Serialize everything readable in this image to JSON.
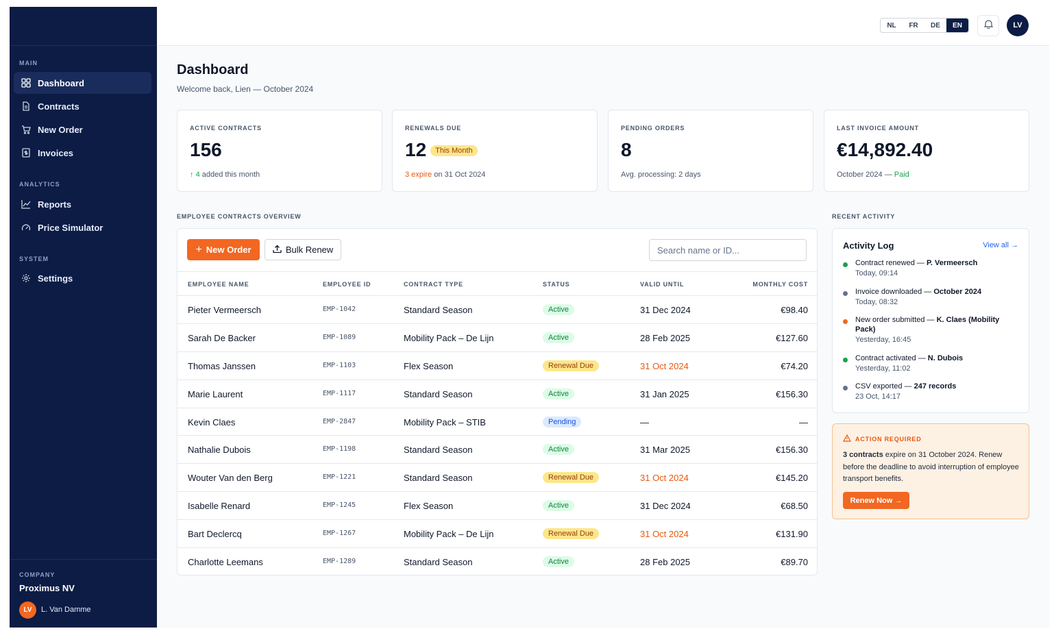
{
  "sidebar": {
    "sections": [
      {
        "label": "MAIN",
        "items": [
          {
            "label": "Dashboard",
            "icon": "grid-icon",
            "active": true
          },
          {
            "label": "Contracts",
            "icon": "document-icon"
          },
          {
            "label": "New Order",
            "icon": "cart-icon"
          },
          {
            "label": "Invoices",
            "icon": "invoice-icon"
          }
        ]
      },
      {
        "label": "ANALYTICS",
        "items": [
          {
            "label": "Reports",
            "icon": "chart-line-icon"
          },
          {
            "label": "Price Simulator",
            "icon": "gauge-icon"
          }
        ]
      },
      {
        "label": "SYSTEM",
        "items": [
          {
            "label": "Settings",
            "icon": "gear-icon"
          }
        ]
      }
    ],
    "company_label": "COMPANY",
    "company_name": "Proximus NV",
    "user_initials": "LV",
    "user_name": "L. Van Damme"
  },
  "topbar": {
    "languages": [
      "NL",
      "FR",
      "DE",
      "EN"
    ],
    "active_language": "EN",
    "avatar_initials": "LV"
  },
  "page": {
    "title": "Dashboard",
    "subtitle": "Welcome back, Lien — October 2024"
  },
  "stats": [
    {
      "label": "ACTIVE CONTRACTS",
      "value": "156",
      "note_arrow": "↑",
      "note_highlight": "4",
      "note_rest": " added this month"
    },
    {
      "label": "RENEWALS DUE",
      "value": "12",
      "badge": "This Month",
      "note_highlight": "3 expire",
      "note_rest": " on 31 Oct 2024"
    },
    {
      "label": "PENDING ORDERS",
      "value": "8",
      "note_rest": "Avg. processing: 2 days"
    },
    {
      "label": "LAST INVOICE AMOUNT",
      "value": "€14,892.40",
      "note_rest": "October 2024 — ",
      "note_highlight": "Paid"
    }
  ],
  "contracts": {
    "section_label": "EMPLOYEE CONTRACTS OVERVIEW",
    "new_order_label": "New Order",
    "bulk_renew_label": "Bulk Renew",
    "search_placeholder": "Search name or ID...",
    "columns": [
      "EMPLOYEE NAME",
      "EMPLOYEE ID",
      "CONTRACT TYPE",
      "STATUS",
      "VALID UNTIL",
      "MONTHLY COST"
    ],
    "rows": [
      {
        "name": "Pieter Vermeersch",
        "id": "EMP-1042",
        "type": "Standard Season",
        "status": "Active",
        "valid": "31 Dec 2024",
        "cost": "€98.40"
      },
      {
        "name": "Sarah De Backer",
        "id": "EMP-1089",
        "type": "Mobility Pack – De Lijn",
        "status": "Active",
        "valid": "28 Feb 2025",
        "cost": "€127.60"
      },
      {
        "name": "Thomas Janssen",
        "id": "EMP-1103",
        "type": "Flex Season",
        "status": "Renewal Due",
        "valid": "31 Oct 2024",
        "cost": "€74.20"
      },
      {
        "name": "Marie Laurent",
        "id": "EMP-1117",
        "type": "Standard Season",
        "status": "Active",
        "valid": "31 Jan 2025",
        "cost": "€156.30"
      },
      {
        "name": "Kevin Claes",
        "id": "EMP-2847",
        "type": "Mobility Pack – STIB",
        "status": "Pending",
        "valid": "—",
        "cost": "—"
      },
      {
        "name": "Nathalie Dubois",
        "id": "EMP-1198",
        "type": "Standard Season",
        "status": "Active",
        "valid": "31 Mar 2025",
        "cost": "€156.30"
      },
      {
        "name": "Wouter Van den Berg",
        "id": "EMP-1221",
        "type": "Standard Season",
        "status": "Renewal Due",
        "valid": "31 Oct 2024",
        "cost": "€145.20"
      },
      {
        "name": "Isabelle Renard",
        "id": "EMP-1245",
        "type": "Flex Season",
        "status": "Active",
        "valid": "31 Dec 2024",
        "cost": "€68.50"
      },
      {
        "name": "Bart Declercq",
        "id": "EMP-1267",
        "type": "Mobility Pack – De Lijn",
        "status": "Renewal Due",
        "valid": "31 Oct 2024",
        "cost": "€131.90"
      },
      {
        "name": "Charlotte Leemans",
        "id": "EMP-1289",
        "type": "Standard Season",
        "status": "Active",
        "valid": "28 Feb 2025",
        "cost": "€89.70"
      }
    ]
  },
  "activity": {
    "section_label": "RECENT ACTIVITY",
    "title": "Activity Log",
    "view_all": "View all →",
    "items": [
      {
        "text": "Contract renewed — ",
        "bold": "P. Vermeersch",
        "time": "Today, 09:14",
        "color": "#16a34a"
      },
      {
        "text": "Invoice downloaded — ",
        "bold": "October 2024",
        "time": "Today, 08:32",
        "color": "#64748b"
      },
      {
        "text": "New order submitted — ",
        "bold": "K. Claes (Mobility Pack)",
        "time": "Yesterday, 16:45",
        "color": "#f26722"
      },
      {
        "text": "Contract activated — ",
        "bold": "N. Dubois",
        "time": "Yesterday, 11:02",
        "color": "#16a34a"
      },
      {
        "text": "CSV exported — ",
        "bold": "247 records",
        "time": "23 Oct, 14:17",
        "color": "#64748b"
      }
    ]
  },
  "action": {
    "label": "ACTION REQUIRED",
    "bold": "3 contracts",
    "body": " expire on 31 October 2024. Renew before the deadline to avoid interruption of employee transport benefits.",
    "button": "Renew Now →"
  },
  "colors": {
    "sidebar_bg": "#0c1c45",
    "accent": "#f26722",
    "success": "#16a34a",
    "warning_text": "#ea580c"
  }
}
